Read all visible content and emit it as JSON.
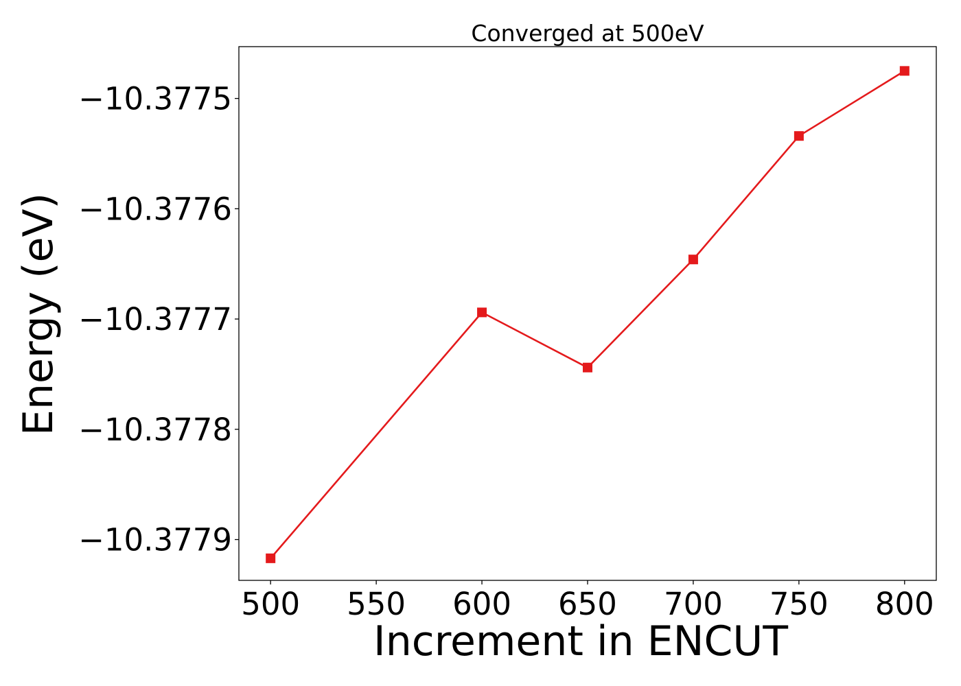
{
  "chart_data": {
    "type": "line",
    "title": "Converged at 500eV",
    "xlabel": "Increment in ENCUT",
    "ylabel": "Energy (eV)",
    "x": [
      500,
      600,
      650,
      700,
      750,
      800
    ],
    "series": [
      {
        "values": [
          -10.377917,
          -10.377694,
          -10.377744,
          -10.377646,
          -10.377534,
          -10.377475
        ],
        "color": "#e41a1c",
        "marker": "square"
      }
    ],
    "xticks": [
      500,
      550,
      600,
      650,
      700,
      750,
      800
    ],
    "xtick_labels": [
      "500",
      "550",
      "600",
      "650",
      "700",
      "750",
      "800"
    ],
    "yticks": [
      -10.3775,
      -10.3776,
      -10.3777,
      -10.3778,
      -10.3779
    ],
    "ytick_labels": [
      "−10.3775",
      "−10.3776",
      "−10.3777",
      "−10.3778",
      "−10.3779"
    ],
    "xlim": [
      485,
      815
    ],
    "ylim": [
      -10.377937,
      -10.377453
    ],
    "grid": false,
    "legend": "none"
  }
}
